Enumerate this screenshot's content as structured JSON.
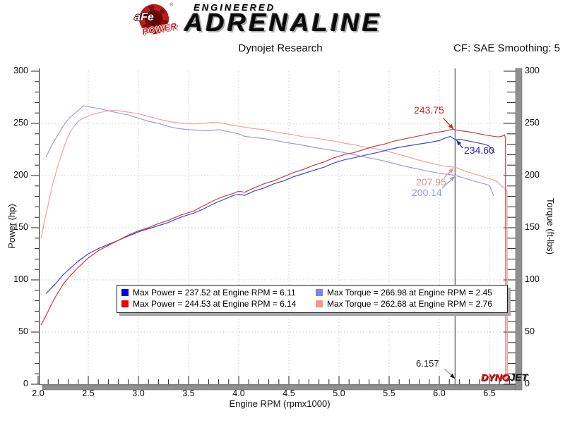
{
  "header": {
    "logo": {
      "brand": "aFe",
      "sub": "POWER",
      "registered": "®"
    },
    "title_line1": "ENGINEERED",
    "title_line2": "ADRENALINE"
  },
  "chart_header": {
    "left_title": "Dynojet Research",
    "right_title": "CF: SAE Smoothing: 5"
  },
  "watermark": {
    "dyno": "DYNO",
    "jet": "JET"
  },
  "chart_data": {
    "type": "line",
    "title": "Dynojet Research",
    "correction_note": "CF: SAE Smoothing: 5",
    "xlabel": "Engine RPM (rpmx1000)",
    "ylabel_left": "Power (hp)",
    "ylabel_right": "Torque (ft-lbs)",
    "xlim": [
      2.0,
      6.75
    ],
    "ylim": [
      0,
      300
    ],
    "x_tick_labels": [
      "2.0",
      "2.5",
      "3.0",
      "3.5",
      "4.0",
      "4.5",
      "5.0",
      "5.5",
      "6.0",
      "6.5"
    ],
    "y_tick_labels": [
      "0",
      "50",
      "100",
      "150",
      "200",
      "250",
      "300"
    ],
    "x_minor_step": 0.1,
    "y_minor_step": 10,
    "grid": {
      "shown": true,
      "style": "dotted",
      "x_step": 0.5,
      "y_step": 50
    },
    "legend_position": "bottom-center-inside",
    "cursor": {
      "rpm": 6.157,
      "label": "6.157"
    },
    "series": [
      {
        "id": "power_baseline",
        "group": "power",
        "name": "Max Power = 237.52 at Engine RPM = 6.11",
        "max": 237.52,
        "max_rpm": 6.11,
        "color": "#4646c8",
        "swatch": "#0000ee",
        "points": [
          [
            2.08,
            87
          ],
          [
            2.12,
            91
          ],
          [
            2.18,
            97
          ],
          [
            2.25,
            105
          ],
          [
            2.32,
            111
          ],
          [
            2.4,
            118
          ],
          [
            2.5,
            125
          ],
          [
            2.6,
            130
          ],
          [
            2.7,
            134
          ],
          [
            2.8,
            138
          ],
          [
            2.9,
            142
          ],
          [
            3.0,
            146
          ],
          [
            3.1,
            149
          ],
          [
            3.2,
            152
          ],
          [
            3.3,
            155
          ],
          [
            3.42,
            160
          ],
          [
            3.55,
            164
          ],
          [
            3.65,
            168
          ],
          [
            3.75,
            173
          ],
          [
            3.85,
            177
          ],
          [
            3.95,
            181
          ],
          [
            4.0,
            182
          ],
          [
            4.06,
            181
          ],
          [
            4.15,
            185
          ],
          [
            4.25,
            188
          ],
          [
            4.35,
            192
          ],
          [
            4.45,
            195
          ],
          [
            4.55,
            199
          ],
          [
            4.65,
            202
          ],
          [
            4.75,
            205
          ],
          [
            4.85,
            208
          ],
          [
            4.95,
            212
          ],
          [
            5.05,
            215
          ],
          [
            5.15,
            217
          ],
          [
            5.28,
            220
          ],
          [
            5.38,
            222
          ],
          [
            5.5,
            225
          ],
          [
            5.6,
            227
          ],
          [
            5.72,
            229
          ],
          [
            5.82,
            230.5
          ],
          [
            5.92,
            232
          ],
          [
            6.0,
            233.5
          ],
          [
            6.06,
            236
          ],
          [
            6.11,
            237.5
          ],
          [
            6.157,
            234.6
          ],
          [
            6.22,
            234.5
          ],
          [
            6.3,
            233
          ],
          [
            6.4,
            231
          ],
          [
            6.47,
            229.5
          ],
          [
            6.5,
            228
          ],
          [
            6.53,
            224
          ],
          [
            6.55,
            222
          ]
        ]
      },
      {
        "id": "power_afe",
        "group": "power",
        "name": "Max Power = 244.53 at Engine RPM = 6.14",
        "max": 244.53,
        "max_rpm": 6.14,
        "color": "#cf3a3a",
        "swatch": "#ee0000",
        "points": [
          [
            2.03,
            57
          ],
          [
            2.08,
            66
          ],
          [
            2.13,
            76
          ],
          [
            2.18,
            85
          ],
          [
            2.25,
            96
          ],
          [
            2.32,
            104
          ],
          [
            2.4,
            112
          ],
          [
            2.5,
            121
          ],
          [
            2.6,
            128
          ],
          [
            2.7,
            133
          ],
          [
            2.8,
            138
          ],
          [
            2.9,
            143
          ],
          [
            3.0,
            147
          ],
          [
            3.1,
            150
          ],
          [
            3.2,
            154
          ],
          [
            3.3,
            157
          ],
          [
            3.42,
            162
          ],
          [
            3.55,
            166
          ],
          [
            3.65,
            171
          ],
          [
            3.75,
            176
          ],
          [
            3.85,
            180
          ],
          [
            3.95,
            183
          ],
          [
            4.0,
            185
          ],
          [
            4.06,
            184
          ],
          [
            4.15,
            188
          ],
          [
            4.25,
            192
          ],
          [
            4.35,
            195
          ],
          [
            4.45,
            199
          ],
          [
            4.55,
            203
          ],
          [
            4.65,
            206
          ],
          [
            4.75,
            210
          ],
          [
            4.85,
            213
          ],
          [
            4.95,
            217
          ],
          [
            5.05,
            220
          ],
          [
            5.15,
            222
          ],
          [
            5.25,
            225
          ],
          [
            5.35,
            228
          ],
          [
            5.45,
            230
          ],
          [
            5.55,
            233
          ],
          [
            5.65,
            235
          ],
          [
            5.75,
            237
          ],
          [
            5.85,
            239
          ],
          [
            5.95,
            241
          ],
          [
            6.05,
            242.5
          ],
          [
            6.14,
            244.5
          ],
          [
            6.157,
            243.75
          ],
          [
            6.25,
            242.5
          ],
          [
            6.35,
            241
          ],
          [
            6.45,
            239
          ],
          [
            6.52,
            238
          ],
          [
            6.58,
            237
          ],
          [
            6.62,
            237.5
          ],
          [
            6.65,
            239
          ],
          [
            6.66,
            236
          ],
          [
            6.665,
            2
          ]
        ]
      },
      {
        "id": "torque_baseline",
        "group": "torque",
        "name": "Max Torque = 266.98 at Engine RPM = 2.45",
        "max": 266.98,
        "max_rpm": 2.45,
        "color": "#9c9cde",
        "swatch": "#8080f0",
        "points": [
          [
            2.08,
            218
          ],
          [
            2.12,
            226
          ],
          [
            2.16,
            233
          ],
          [
            2.21,
            241
          ],
          [
            2.26,
            249
          ],
          [
            2.31,
            255
          ],
          [
            2.37,
            260
          ],
          [
            2.42,
            264
          ],
          [
            2.45,
            267
          ],
          [
            2.5,
            266
          ],
          [
            2.56,
            265
          ],
          [
            2.62,
            264
          ],
          [
            2.7,
            262
          ],
          [
            2.8,
            260
          ],
          [
            2.9,
            258
          ],
          [
            3.0,
            255
          ],
          [
            3.1,
            252
          ],
          [
            3.2,
            250
          ],
          [
            3.3,
            247
          ],
          [
            3.4,
            245
          ],
          [
            3.5,
            244
          ],
          [
            3.6,
            243.5
          ],
          [
            3.7,
            243
          ],
          [
            3.8,
            244
          ],
          [
            3.9,
            242
          ],
          [
            4.0,
            240
          ],
          [
            4.06,
            237.5
          ],
          [
            4.15,
            236.5
          ],
          [
            4.25,
            235.5
          ],
          [
            4.35,
            234
          ],
          [
            4.45,
            232
          ],
          [
            4.55,
            230.5
          ],
          [
            4.65,
            229
          ],
          [
            4.75,
            227
          ],
          [
            4.85,
            225.5
          ],
          [
            4.95,
            224
          ],
          [
            5.05,
            222
          ],
          [
            5.15,
            220
          ],
          [
            5.25,
            218
          ],
          [
            5.35,
            216
          ],
          [
            5.45,
            214
          ],
          [
            5.55,
            211.5
          ],
          [
            5.65,
            209
          ],
          [
            5.75,
            207
          ],
          [
            5.85,
            205
          ],
          [
            5.95,
            203
          ],
          [
            6.05,
            201.5
          ],
          [
            6.1,
            201
          ],
          [
            6.157,
            200.14
          ],
          [
            6.25,
            197.5
          ],
          [
            6.35,
            194.5
          ],
          [
            6.45,
            192
          ],
          [
            6.5,
            190.5
          ],
          [
            6.52,
            186
          ],
          [
            6.54,
            181
          ]
        ]
      },
      {
        "id": "torque_afe",
        "group": "torque",
        "name": "Max Torque = 262.68 at Engine RPM = 2.76",
        "max": 262.68,
        "max_rpm": 2.76,
        "color": "#eda2a2",
        "swatch": "#ff9090",
        "points": [
          [
            2.03,
            140
          ],
          [
            2.06,
            155
          ],
          [
            2.1,
            172
          ],
          [
            2.14,
            190
          ],
          [
            2.19,
            207
          ],
          [
            2.24,
            222
          ],
          [
            2.29,
            236
          ],
          [
            2.34,
            245
          ],
          [
            2.4,
            252
          ],
          [
            2.45,
            255
          ],
          [
            2.5,
            257
          ],
          [
            2.56,
            259
          ],
          [
            2.62,
            260.5
          ],
          [
            2.7,
            262
          ],
          [
            2.76,
            262.7
          ],
          [
            2.85,
            261.5
          ],
          [
            2.95,
            260
          ],
          [
            3.05,
            258
          ],
          [
            3.15,
            255.5
          ],
          [
            3.25,
            253
          ],
          [
            3.35,
            251
          ],
          [
            3.45,
            250
          ],
          [
            3.55,
            249.5
          ],
          [
            3.65,
            250
          ],
          [
            3.75,
            251
          ],
          [
            3.85,
            250
          ],
          [
            3.95,
            248
          ],
          [
            4.05,
            246.5
          ],
          [
            4.15,
            245
          ],
          [
            4.25,
            244
          ],
          [
            4.35,
            242
          ],
          [
            4.45,
            240.5
          ],
          [
            4.55,
            239
          ],
          [
            4.65,
            237
          ],
          [
            4.75,
            236
          ],
          [
            4.85,
            234.5
          ],
          [
            4.95,
            233
          ],
          [
            5.05,
            231
          ],
          [
            5.15,
            229.5
          ],
          [
            5.25,
            227.5
          ],
          [
            5.35,
            226
          ],
          [
            5.45,
            224
          ],
          [
            5.55,
            221.5
          ],
          [
            5.65,
            219
          ],
          [
            5.75,
            216
          ],
          [
            5.85,
            213.5
          ],
          [
            5.95,
            211
          ],
          [
            6.05,
            209
          ],
          [
            6.1,
            208.5
          ],
          [
            6.157,
            207.95
          ],
          [
            6.25,
            204.5
          ],
          [
            6.35,
            201.5
          ],
          [
            6.45,
            198.5
          ],
          [
            6.52,
            196.5
          ],
          [
            6.58,
            194
          ],
          [
            6.62,
            190
          ],
          [
            6.65,
            188
          ],
          [
            6.67,
            186
          ],
          [
            6.675,
            184
          ],
          [
            6.68,
            2
          ]
        ]
      }
    ],
    "annotations": [
      {
        "id": "ann-power-afe",
        "label": "243.75",
        "rpm": 6.157,
        "value": 243.75,
        "color": "#cc2222"
      },
      {
        "id": "ann-power-base",
        "label": "234.60",
        "rpm": 6.157,
        "value": 234.6,
        "color": "#2222cc"
      },
      {
        "id": "ann-torque-afe",
        "label": "207.95",
        "rpm": 6.157,
        "value": 207.95,
        "color": "#e88f8f"
      },
      {
        "id": "ann-torque-base",
        "label": "200.14",
        "rpm": 6.157,
        "value": 200.14,
        "color": "#8f9bdd"
      },
      {
        "id": "ann-cursor",
        "label": "6.157",
        "rpm": 6.157,
        "value": null,
        "color": "#222222"
      }
    ]
  }
}
